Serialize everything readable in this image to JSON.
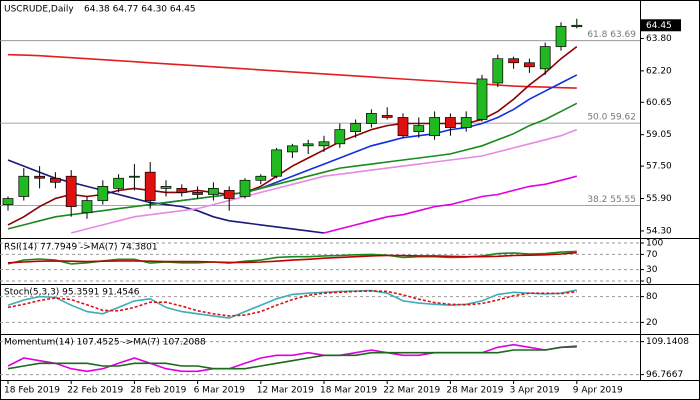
{
  "chart_data": [
    {
      "type": "candlestick",
      "title": "USCRUDE,Daily",
      "subtitle": "64.38 64.77 64.30 64.45",
      "categories": [
        "18 Feb 2019",
        null,
        null,
        null,
        "22 Feb 2019",
        null,
        null,
        null,
        "28 Feb 2019",
        null,
        null,
        null,
        "6 Mar 2019",
        null,
        null,
        null,
        "12 Mar 2019",
        null,
        null,
        null,
        "18 Mar 2019",
        null,
        null,
        null,
        "22 Mar 2019",
        null,
        null,
        null,
        "28 Mar 2019",
        null,
        null,
        null,
        "3 Apr 2019",
        null,
        null,
        null,
        "9 Apr 2019"
      ],
      "open": [
        55.6,
        56.0,
        57.0,
        56.9,
        57.0,
        55.2,
        55.8,
        56.4,
        57.0,
        57.2,
        56.4,
        56.4,
        56.2,
        56.1,
        56.3,
        56.0,
        56.8,
        57.0,
        58.2,
        58.5,
        58.5,
        58.6,
        59.2,
        59.6,
        60.0,
        59.9,
        59.2,
        59.0,
        59.9,
        59.4,
        59.8,
        61.6,
        62.8,
        62.6,
        62.3,
        63.4,
        64.38
      ],
      "high": [
        56.0,
        57.4,
        57.5,
        57.2,
        57.3,
        56.0,
        56.8,
        57.1,
        57.6,
        57.7,
        56.8,
        56.6,
        56.5,
        56.7,
        56.5,
        56.9,
        57.1,
        58.4,
        58.6,
        58.8,
        59.0,
        59.6,
        59.8,
        60.3,
        60.4,
        60.1,
        59.9,
        60.2,
        60.1,
        60.2,
        62.0,
        63.0,
        62.9,
        62.8,
        63.6,
        64.6,
        64.77
      ],
      "low": [
        55.3,
        55.8,
        56.4,
        56.4,
        55.0,
        54.9,
        55.6,
        56.2,
        56.3,
        55.4,
        56.0,
        56.0,
        55.9,
        55.8,
        55.3,
        55.9,
        56.6,
        56.9,
        57.9,
        58.1,
        58.2,
        58.4,
        58.9,
        59.4,
        59.8,
        58.9,
        58.9,
        58.8,
        59.0,
        59.2,
        59.7,
        61.4,
        62.3,
        62.1,
        62.0,
        63.2,
        64.3
      ],
      "close": [
        55.9,
        57.0,
        56.9,
        56.7,
        55.5,
        55.8,
        56.5,
        56.9,
        57.0,
        55.8,
        56.5,
        56.2,
        56.1,
        56.4,
        55.9,
        56.8,
        57.0,
        58.3,
        58.5,
        58.6,
        58.7,
        59.3,
        59.6,
        60.1,
        59.9,
        59.0,
        59.5,
        59.9,
        59.4,
        59.9,
        61.8,
        62.8,
        62.6,
        62.4,
        63.4,
        64.4,
        64.45
      ],
      "up_color": "#22b822",
      "down_color": "#e01010",
      "series": [
        {
          "color": "#e0201f",
          "values": [
            63.0,
            62.98,
            62.95,
            62.9,
            62.85,
            62.8,
            62.75,
            62.7,
            62.65,
            62.6,
            62.55,
            62.5,
            62.45,
            62.4,
            62.35,
            62.3,
            62.25,
            62.2,
            62.15,
            62.1,
            62.05,
            62.0,
            61.95,
            61.9,
            61.85,
            61.8,
            61.75,
            61.7,
            61.65,
            61.6,
            61.55,
            61.5,
            61.45,
            61.42,
            61.4,
            61.37,
            61.35
          ]
        },
        {
          "color": "#8b0000",
          "values": [
            54.6,
            55.0,
            55.5,
            55.9,
            56.1,
            56.0,
            56.1,
            56.3,
            56.4,
            56.3,
            56.2,
            56.2,
            56.3,
            56.2,
            56.1,
            56.2,
            56.5,
            57.0,
            57.5,
            57.9,
            58.3,
            58.7,
            59.0,
            59.3,
            59.5,
            59.6,
            59.6,
            59.6,
            59.6,
            59.6,
            59.8,
            60.2,
            60.8,
            61.5,
            62.1,
            62.8,
            63.4
          ]
        },
        {
          "color": "#1030e0",
          "values": [
            null,
            null,
            null,
            null,
            null,
            null,
            null,
            null,
            null,
            55.6,
            55.7,
            55.8,
            55.9,
            56.0,
            56.1,
            56.2,
            56.4,
            56.7,
            57.0,
            57.3,
            57.6,
            57.9,
            58.2,
            58.5,
            58.7,
            58.9,
            59.0,
            59.1,
            59.3,
            59.4,
            59.6,
            59.9,
            60.3,
            60.8,
            61.2,
            61.6,
            62.0
          ]
        },
        {
          "color": "#1a1a7a",
          "values": [
            57.8,
            57.5,
            57.2,
            56.9,
            56.7,
            56.5,
            56.3,
            56.1,
            55.9,
            55.7,
            55.6,
            55.5,
            55.3,
            55.0,
            54.8,
            54.7,
            54.6,
            54.5,
            54.4,
            54.3,
            54.2,
            null,
            null,
            null,
            null,
            null,
            null,
            null,
            null,
            null,
            null,
            null,
            null,
            null,
            null,
            null,
            null
          ]
        },
        {
          "color": "#1a8a1a",
          "values": [
            54.4,
            54.6,
            54.8,
            55.0,
            55.1,
            55.2,
            55.3,
            55.4,
            55.5,
            55.6,
            55.7,
            55.8,
            55.9,
            56.0,
            56.1,
            56.2,
            56.4,
            56.6,
            56.8,
            57.0,
            57.2,
            57.4,
            57.5,
            57.6,
            57.7,
            57.8,
            57.9,
            58.0,
            58.1,
            58.3,
            58.5,
            58.8,
            59.1,
            59.5,
            59.8,
            60.2,
            60.6
          ]
        },
        {
          "color": "#e58ae5",
          "values": [
            null,
            null,
            null,
            null,
            54.2,
            54.4,
            54.6,
            54.8,
            55.0,
            55.1,
            55.2,
            55.3,
            55.4,
            55.6,
            55.8,
            56.0,
            56.2,
            56.4,
            56.6,
            56.8,
            57.0,
            57.1,
            57.2,
            57.3,
            57.4,
            57.5,
            57.6,
            57.7,
            57.8,
            57.9,
            58.0,
            58.2,
            58.4,
            58.6,
            58.8,
            59.0,
            59.3
          ]
        },
        {
          "color": "#e000e0",
          "values": [
            null,
            null,
            null,
            null,
            null,
            null,
            null,
            null,
            null,
            null,
            null,
            null,
            null,
            null,
            null,
            null,
            null,
            null,
            null,
            null,
            54.2,
            54.4,
            54.6,
            54.8,
            55.0,
            55.1,
            55.3,
            55.5,
            55.6,
            55.8,
            56.0,
            56.1,
            56.3,
            56.5,
            56.6,
            56.8,
            57.0
          ]
        }
      ],
      "annotations": [
        {
          "label": "61.8 63.69",
          "value": 63.69
        },
        {
          "label": "50.0 59.62",
          "value": 59.62
        },
        {
          "label": "38.2 55.55",
          "value": 55.55
        }
      ],
      "last_price": 64.45,
      "ylim": [
        54.05,
        65.5
      ],
      "yticks": [
        {
          "value": 63.8,
          "label": "63.80"
        },
        {
          "value": 62.2,
          "label": "62.20"
        },
        60.65,
        59.05,
        {
          "value": 57.5,
          "label": "57.50"
        },
        {
          "value": 55.9,
          "label": "55.90"
        },
        {
          "value": 54.3,
          "label": "54.30"
        }
      ]
    },
    {
      "type": "line",
      "title": "RSI(14) 77.7949  ->MA(7) 74.3801",
      "ylim": [
        0,
        100
      ],
      "yticks": [
        100,
        70,
        30,
        0
      ],
      "series": [
        {
          "color": "#1a8a1a",
          "values": [
            45,
            55,
            58,
            55,
            45,
            48,
            53,
            57,
            57,
            47,
            50,
            48,
            48,
            50,
            47,
            52,
            55,
            62,
            64,
            64,
            66,
            67,
            69,
            70,
            68,
            62,
            64,
            64,
            62,
            63,
            66,
            72,
            74,
            71,
            72,
            76,
            77.79
          ]
        },
        {
          "color": "#c00000",
          "values": [
            48,
            50,
            52,
            53,
            52,
            51,
            52,
            53,
            53,
            52,
            51,
            51,
            51,
            50,
            49,
            49,
            50,
            52,
            55,
            57,
            60,
            62,
            64,
            66,
            67,
            67,
            66,
            66,
            65,
            64,
            64,
            65,
            67,
            68,
            69,
            71,
            74.38
          ]
        }
      ]
    },
    {
      "type": "line",
      "title": "Stoch(5,3,3) 95.3591 91.4546",
      "ylim": [
        0,
        100
      ],
      "yticks": [
        80,
        20
      ],
      "series": [
        {
          "color": "#3aaeb8",
          "values": [
            60,
            72,
            80,
            78,
            60,
            45,
            40,
            55,
            70,
            75,
            55,
            45,
            40,
            35,
            30,
            45,
            60,
            75,
            85,
            88,
            90,
            92,
            93,
            94,
            88,
            70,
            65,
            62,
            60,
            62,
            70,
            85,
            90,
            88,
            86,
            88,
            95.36
          ]
        },
        {
          "color": "#e01010",
          "dashed": true,
          "values": [
            55,
            62,
            71,
            77,
            73,
            61,
            48,
            47,
            55,
            67,
            67,
            58,
            47,
            40,
            35,
            37,
            45,
            60,
            73,
            83,
            88,
            90,
            92,
            93,
            92,
            84,
            74,
            66,
            62,
            61,
            64,
            72,
            82,
            88,
            88,
            87,
            91.45
          ]
        }
      ]
    },
    {
      "type": "line",
      "title": "Momentum(14) 107.4525  ->MA(7) 107.2088",
      "ylim": [
        95.5,
        110.5
      ],
      "yticks": [
        109.1408,
        96.7667
      ],
      "series": [
        {
          "color": "#e000e0",
          "values": [
            100,
            103,
            102,
            101,
            99,
            98,
            99,
            101,
            103,
            101,
            99,
            98,
            98,
            99,
            99,
            101,
            103,
            104,
            104,
            105,
            104,
            104,
            105,
            106,
            105,
            104,
            104,
            105,
            105,
            105,
            105,
            107,
            108,
            107,
            106,
            107,
            107.45
          ]
        },
        {
          "color": "#1a6a1a",
          "values": [
            99,
            100,
            101,
            101,
            101,
            101,
            100,
            100,
            101,
            101,
            101,
            100,
            100,
            99,
            99,
            99,
            100,
            101,
            102,
            103,
            104,
            104,
            104,
            105,
            105,
            105,
            105,
            105,
            105,
            105,
            105,
            105,
            106,
            106,
            106,
            107,
            107.21
          ]
        }
      ]
    }
  ]
}
